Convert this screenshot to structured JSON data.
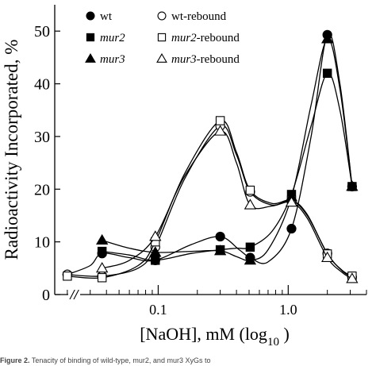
{
  "chart_data": {
    "type": "scatter",
    "title": "",
    "xlabel": "[NaOH], mM (log",
    "xlabel_subscript": "10",
    "xlabel_suffix": " )",
    "ylabel": "Radioactivity Incorporated, %",
    "x_scale": "log",
    "xlim": [
      0.016,
      4.0
    ],
    "ylim": [
      0,
      55
    ],
    "x_ticks": [
      {
        "value": 0.1,
        "label": "0.1"
      },
      {
        "value": 1.0,
        "label": "1.0"
      }
    ],
    "y_ticks": [
      0,
      10,
      20,
      30,
      40,
      50
    ],
    "y_tick_labels": [
      "0",
      "10",
      "20",
      "30",
      "40",
      "50"
    ],
    "axis_break": "//",
    "grid": false,
    "legend_position": "top-left",
    "series": [
      {
        "name": "wt",
        "name_italic": false,
        "marker": "circle",
        "filled": true,
        "points": [
          [
            0.02,
            3.8
          ],
          [
            0.037,
            7.8
          ],
          [
            0.095,
            6.5
          ],
          [
            0.3,
            11.0
          ],
          [
            0.51,
            7.0
          ],
          [
            1.06,
            12.5
          ],
          [
            2.0,
            49.3
          ],
          [
            3.1,
            20.5
          ]
        ],
        "curve": [
          [
            0.02,
            3.8
          ],
          [
            0.03,
            5.5
          ],
          [
            0.037,
            7.8
          ],
          [
            0.06,
            7.0
          ],
          [
            0.095,
            6.5
          ],
          [
            0.18,
            9.5
          ],
          [
            0.3,
            11.0
          ],
          [
            0.42,
            8.5
          ],
          [
            0.51,
            7.0
          ],
          [
            0.7,
            6.2
          ],
          [
            1.06,
            12.5
          ],
          [
            1.5,
            30.0
          ],
          [
            2.0,
            49.3
          ],
          [
            2.5,
            40.0
          ],
          [
            3.1,
            20.5
          ]
        ]
      },
      {
        "name": "wt-rebound",
        "name_italic": false,
        "marker": "circle",
        "filled": false,
        "points": [
          [
            0.02,
            3.8
          ],
          [
            0.037,
            3.5
          ],
          [
            0.095,
            9.0
          ],
          [
            0.3,
            32.0
          ],
          [
            0.51,
            19.5
          ],
          [
            1.06,
            17.8
          ],
          [
            2.0,
            7.8
          ],
          [
            3.1,
            3.3
          ]
        ],
        "curve": [
          [
            0.02,
            3.8
          ],
          [
            0.037,
            3.5
          ],
          [
            0.07,
            5.0
          ],
          [
            0.095,
            9.0
          ],
          [
            0.16,
            22.0
          ],
          [
            0.3,
            32.0
          ],
          [
            0.4,
            26.5
          ],
          [
            0.51,
            19.5
          ],
          [
            0.75,
            17.0
          ],
          [
            1.06,
            17.8
          ],
          [
            1.4,
            15.0
          ],
          [
            2.0,
            7.8
          ],
          [
            2.6,
            4.5
          ],
          [
            3.1,
            3.3
          ]
        ]
      },
      {
        "name": "mur2",
        "name_italic": true,
        "name_suffix": "",
        "marker": "square",
        "filled": true,
        "points": [
          [
            0.037,
            8.2
          ],
          [
            0.095,
            6.5
          ],
          [
            0.3,
            8.5
          ],
          [
            0.51,
            9.0
          ],
          [
            1.06,
            19.0
          ],
          [
            2.0,
            42.0
          ],
          [
            3.1,
            20.5
          ]
        ],
        "curve": [
          [
            0.037,
            8.2
          ],
          [
            0.06,
            7.5
          ],
          [
            0.095,
            6.5
          ],
          [
            0.18,
            7.8
          ],
          [
            0.3,
            8.5
          ],
          [
            0.4,
            8.8
          ],
          [
            0.51,
            9.0
          ],
          [
            0.75,
            12.0
          ],
          [
            1.06,
            19.0
          ],
          [
            1.5,
            32.0
          ],
          [
            2.0,
            42.0
          ],
          [
            2.5,
            35.0
          ],
          [
            3.1,
            20.5
          ]
        ]
      },
      {
        "name": "mur2-rebound",
        "name_italic": true,
        "name_suffix": "-rebound",
        "marker": "square",
        "filled": false,
        "points": [
          [
            0.02,
            3.5
          ],
          [
            0.037,
            3.2
          ],
          [
            0.095,
            10.0
          ],
          [
            0.3,
            33.0
          ],
          [
            0.51,
            19.8
          ],
          [
            1.06,
            17.9
          ],
          [
            2.0,
            7.7
          ],
          [
            3.1,
            3.5
          ]
        ],
        "curve": [
          [
            0.02,
            3.5
          ],
          [
            0.037,
            3.2
          ],
          [
            0.07,
            5.5
          ],
          [
            0.095,
            10.0
          ],
          [
            0.16,
            23.0
          ],
          [
            0.3,
            33.0
          ],
          [
            0.4,
            27.0
          ],
          [
            0.51,
            19.8
          ],
          [
            0.75,
            17.3
          ],
          [
            1.06,
            17.9
          ],
          [
            1.4,
            15.2
          ],
          [
            2.0,
            7.7
          ],
          [
            2.6,
            4.6
          ],
          [
            3.1,
            3.5
          ]
        ]
      },
      {
        "name": "mur3",
        "name_italic": true,
        "name_suffix": "",
        "marker": "triangle",
        "filled": true,
        "points": [
          [
            0.037,
            10.3
          ],
          [
            0.095,
            8.0
          ],
          [
            0.3,
            8.3
          ],
          [
            0.51,
            6.5
          ],
          [
            1.06,
            18.5
          ],
          [
            2.0,
            48.5
          ],
          [
            3.1,
            20.5
          ]
        ],
        "curve": [
          [
            0.037,
            10.3
          ],
          [
            0.06,
            8.8
          ],
          [
            0.095,
            8.0
          ],
          [
            0.18,
            8.2
          ],
          [
            0.3,
            8.3
          ],
          [
            0.4,
            7.2
          ],
          [
            0.51,
            6.5
          ],
          [
            0.7,
            8.5
          ],
          [
            1.06,
            18.5
          ],
          [
            1.5,
            36.0
          ],
          [
            2.0,
            48.5
          ],
          [
            2.5,
            39.0
          ],
          [
            3.1,
            20.5
          ]
        ]
      },
      {
        "name": "mur3-rebound",
        "name_italic": true,
        "name_suffix": "-rebound",
        "marker": "triangle",
        "filled": false,
        "points": [
          [
            0.037,
            5.0
          ],
          [
            0.095,
            11.0
          ],
          [
            0.3,
            31.0
          ],
          [
            0.51,
            17.0
          ],
          [
            1.06,
            17.5
          ],
          [
            2.0,
            7.0
          ],
          [
            3.1,
            3.0
          ]
        ],
        "curve": [
          [
            0.037,
            5.0
          ],
          [
            0.06,
            6.5
          ],
          [
            0.095,
            11.0
          ],
          [
            0.16,
            22.5
          ],
          [
            0.3,
            31.0
          ],
          [
            0.4,
            25.0
          ],
          [
            0.51,
            17.0
          ],
          [
            0.75,
            16.8
          ],
          [
            1.06,
            17.5
          ],
          [
            1.4,
            14.5
          ],
          [
            2.0,
            7.0
          ],
          [
            2.6,
            4.2
          ],
          [
            3.1,
            3.0
          ]
        ]
      }
    ]
  },
  "legend": {
    "rows": [
      {
        "left": {
          "series": 0,
          "label": "wt",
          "italic": false,
          "suffix": ""
        },
        "right": {
          "series": 1,
          "label": "wt-rebound",
          "italic": false,
          "suffix": ""
        }
      },
      {
        "left": {
          "series": 2,
          "label": "mur2",
          "italic": true,
          "suffix": ""
        },
        "right": {
          "series": 3,
          "label": "mur2",
          "italic": true,
          "suffix": "-rebound"
        }
      },
      {
        "left": {
          "series": 4,
          "label": "mur3",
          "italic": true,
          "suffix": ""
        },
        "right": {
          "series": 5,
          "label": "mur3",
          "italic": true,
          "suffix": "-rebound"
        }
      }
    ]
  },
  "caption": {
    "label": "Figure 2.",
    "text": " Tenacity of binding of wild-type, mur2, and mur3 XyGs to"
  },
  "colors": {
    "ink": "#000000",
    "background": "#ffffff"
  }
}
